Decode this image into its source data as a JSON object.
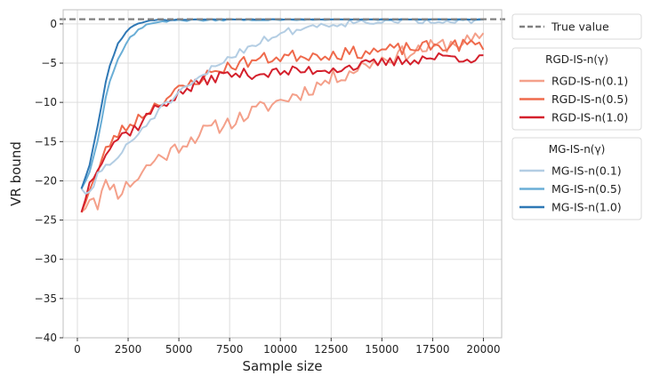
{
  "chart_data": {
    "type": "line",
    "xlabel": "Sample size",
    "ylabel": "VR bound",
    "xlim": [
      -700,
      20900
    ],
    "ylim": [
      -40,
      1.8
    ],
    "xticks": [
      0,
      2500,
      5000,
      7500,
      10000,
      12500,
      15000,
      17500,
      20000
    ],
    "yticks": [
      0,
      -5,
      -10,
      -15,
      -20,
      -25,
      -30,
      -35,
      -40
    ],
    "xtick_labels": [
      "0",
      "2500",
      "5000",
      "7500",
      "10000",
      "12500",
      "15000",
      "17500",
      "20000"
    ],
    "ytick_labels": [
      "0",
      "−5",
      "−10",
      "−15",
      "−20",
      "−25",
      "−30",
      "−35",
      "−40"
    ],
    "grid": true,
    "true_value": 0.6,
    "legends": [
      {
        "title": "",
        "entries": [
          {
            "label": "True value",
            "color": "#808080",
            "dashed": true
          }
        ]
      },
      {
        "title": "RGD-IS-n(γ)",
        "entries": [
          {
            "label": "RGD-IS-n(0.1)",
            "color": "#f4a08a"
          },
          {
            "label": "RGD-IS-n(0.5)",
            "color": "#ef6a4c"
          },
          {
            "label": "RGD-IS-n(1.0)",
            "color": "#d4202c"
          }
        ]
      },
      {
        "title": "MG-IS-n(γ)",
        "entries": [
          {
            "label": "MG-IS-n(0.1)",
            "color": "#b3cde3"
          },
          {
            "label": "MG-IS-n(0.5)",
            "color": "#6aaed6"
          },
          {
            "label": "MG-IS-n(1.0)",
            "color": "#2f78b5"
          }
        ]
      }
    ],
    "series": [
      {
        "name": "RGD-IS-n(0.1)",
        "color": "#f4a08a",
        "x_start": 200,
        "x_step": 200,
        "y0": -24.0,
        "points": [
          [
            200,
            -24
          ],
          [
            700,
            -21.5
          ],
          [
            1000,
            -22.8
          ],
          [
            1500,
            -20
          ],
          [
            2000,
            -21.5
          ],
          [
            2500,
            -20.5
          ],
          [
            3000,
            -19.5
          ],
          [
            3500,
            -18
          ],
          [
            4000,
            -17
          ],
          [
            4500,
            -16.5
          ],
          [
            5000,
            -15.5
          ],
          [
            6000,
            -14
          ],
          [
            7000,
            -13
          ],
          [
            8000,
            -12
          ],
          [
            9000,
            -10.8
          ],
          [
            10000,
            -9.8
          ],
          [
            11000,
            -8.8
          ],
          [
            12000,
            -7.6
          ],
          [
            13000,
            -6.5
          ],
          [
            14000,
            -5.4
          ],
          [
            15000,
            -4.5
          ],
          [
            16000,
            -3.8
          ],
          [
            17000,
            -3.2
          ],
          [
            18000,
            -2.7
          ],
          [
            19000,
            -2.3
          ],
          [
            20000,
            -2.0
          ]
        ],
        "noise": 1.0,
        "seed": 11
      },
      {
        "name": "RGD-IS-n(0.5)",
        "color": "#ef6a4c",
        "x_start": 200,
        "x_step": 200,
        "y0": -24.0,
        "points": [
          [
            200,
            -24
          ],
          [
            500,
            -21.5
          ],
          [
            1000,
            -19
          ],
          [
            1500,
            -15.5
          ],
          [
            2000,
            -14
          ],
          [
            2500,
            -13
          ],
          [
            3000,
            -12
          ],
          [
            3500,
            -11
          ],
          [
            4000,
            -10
          ],
          [
            5000,
            -8.5
          ],
          [
            6000,
            -7
          ],
          [
            7000,
            -5.8
          ],
          [
            8000,
            -5
          ],
          [
            9000,
            -4.5
          ],
          [
            10000,
            -4.2
          ],
          [
            11000,
            -4
          ],
          [
            12000,
            -3.9
          ],
          [
            13000,
            -3.8
          ],
          [
            14000,
            -3.6
          ],
          [
            15000,
            -3.4
          ],
          [
            16000,
            -3.2
          ],
          [
            17000,
            -3.0
          ],
          [
            18000,
            -2.8
          ],
          [
            19000,
            -2.7
          ],
          [
            20000,
            -2.6
          ]
        ],
        "noise": 0.8,
        "seed": 23
      },
      {
        "name": "RGD-IS-n(1.0)",
        "color": "#d4202c",
        "x_start": 200,
        "x_step": 200,
        "y0": -24.0,
        "points": [
          [
            200,
            -24
          ],
          [
            500,
            -21
          ],
          [
            1000,
            -18
          ],
          [
            1500,
            -16
          ],
          [
            2000,
            -14.5
          ],
          [
            2500,
            -13.8
          ],
          [
            3000,
            -13
          ],
          [
            3500,
            -11.5
          ],
          [
            4000,
            -10.5
          ],
          [
            5000,
            -9
          ],
          [
            6000,
            -7.5
          ],
          [
            7000,
            -6.6
          ],
          [
            8000,
            -6.4
          ],
          [
            9000,
            -6.3
          ],
          [
            10000,
            -6.2
          ],
          [
            11000,
            -6.0
          ],
          [
            12000,
            -5.8
          ],
          [
            13000,
            -5.6
          ],
          [
            14000,
            -5.3
          ],
          [
            15000,
            -5.0
          ],
          [
            16000,
            -4.7
          ],
          [
            17000,
            -4.4
          ],
          [
            18000,
            -4.2
          ],
          [
            19000,
            -4.2
          ],
          [
            20000,
            -4.6
          ]
        ],
        "noise": 0.7,
        "seed": 37
      },
      {
        "name": "MG-IS-n(0.1)",
        "color": "#b3cde3",
        "x_start": 200,
        "x_step": 200,
        "y0": -21.0,
        "points": [
          [
            200,
            -21
          ],
          [
            700,
            -22
          ],
          [
            1000,
            -19
          ],
          [
            1500,
            -18
          ],
          [
            2000,
            -17
          ],
          [
            2500,
            -15.5
          ],
          [
            3000,
            -14
          ],
          [
            3500,
            -12.5
          ],
          [
            4000,
            -11
          ],
          [
            5000,
            -9
          ],
          [
            6000,
            -7
          ],
          [
            7000,
            -5
          ],
          [
            8000,
            -3.5
          ],
          [
            9000,
            -2.2
          ],
          [
            10000,
            -1.2
          ],
          [
            11000,
            -0.6
          ],
          [
            12000,
            -0.1
          ],
          [
            13000,
            0.1
          ],
          [
            14000,
            0.3
          ],
          [
            15000,
            0.4
          ],
          [
            16000,
            0.5
          ],
          [
            17000,
            0.5
          ],
          [
            18000,
            0.55
          ],
          [
            19000,
            0.55
          ],
          [
            20000,
            0.6
          ]
        ],
        "noise": 0.5,
        "seed": 51
      },
      {
        "name": "MG-IS-n(0.5)",
        "color": "#6aaed6",
        "x_start": 200,
        "x_step": 200,
        "y0": -21.0,
        "points": [
          [
            200,
            -21
          ],
          [
            600,
            -19
          ],
          [
            1000,
            -15
          ],
          [
            1500,
            -8
          ],
          [
            2000,
            -4.5
          ],
          [
            2500,
            -2
          ],
          [
            3000,
            -0.8
          ],
          [
            3500,
            0.0
          ],
          [
            4000,
            0.3
          ],
          [
            5000,
            0.45
          ],
          [
            6000,
            0.5
          ],
          [
            8000,
            0.55
          ],
          [
            10000,
            0.58
          ],
          [
            12000,
            0.6
          ],
          [
            14000,
            0.6
          ],
          [
            16000,
            0.6
          ],
          [
            18000,
            0.6
          ],
          [
            20000,
            0.6
          ]
        ],
        "noise": 0.12,
        "seed": 63
      },
      {
        "name": "MG-IS-n(1.0)",
        "color": "#2f78b5",
        "x_start": 200,
        "x_step": 200,
        "y0": -21.0,
        "points": [
          [
            200,
            -21
          ],
          [
            600,
            -18
          ],
          [
            1000,
            -13
          ],
          [
            1500,
            -6
          ],
          [
            2000,
            -2.5
          ],
          [
            2500,
            -0.7
          ],
          [
            3000,
            0.1
          ],
          [
            3500,
            0.4
          ],
          [
            4000,
            0.5
          ],
          [
            5000,
            0.55
          ],
          [
            6000,
            0.6
          ],
          [
            8000,
            0.6
          ],
          [
            10000,
            0.6
          ],
          [
            12000,
            0.6
          ],
          [
            14000,
            0.6
          ],
          [
            16000,
            0.6
          ],
          [
            18000,
            0.6
          ],
          [
            20000,
            0.6
          ]
        ],
        "noise": 0.06,
        "seed": 79
      }
    ]
  }
}
